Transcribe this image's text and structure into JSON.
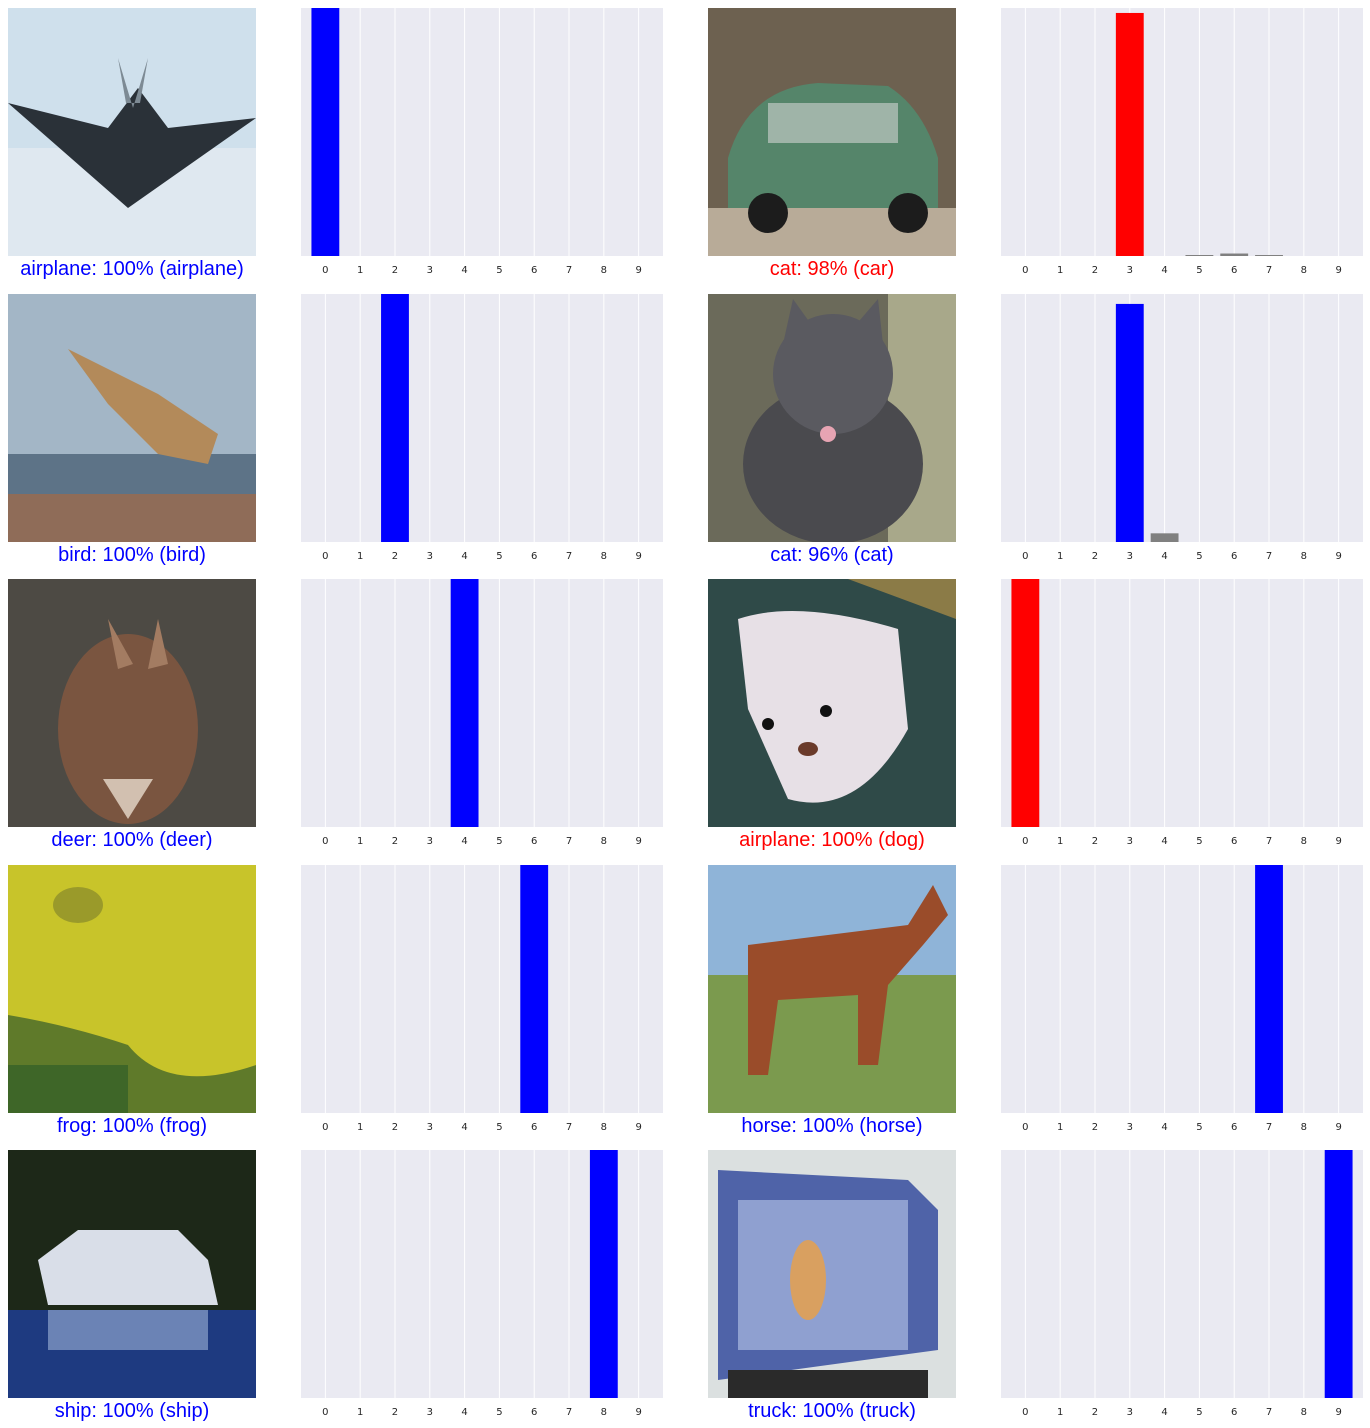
{
  "colors": {
    "correct": "#0000ff",
    "wrong": "#ff0000",
    "other": "#808080",
    "axes_bg": "#eaeaf2",
    "grid": "#ffffff"
  },
  "chart_data": [
    {
      "type": "bar",
      "categories": [
        "0",
        "1",
        "2",
        "3",
        "4",
        "5",
        "6",
        "7",
        "8",
        "9"
      ],
      "values": [
        1.0,
        0,
        0,
        0,
        0,
        0,
        0,
        0,
        0,
        0
      ],
      "predicted": 0,
      "true_label": 0,
      "ylim": [
        0,
        1
      ],
      "grid": true,
      "caption": "airplane: 100% (airplane)",
      "caption_status": "correct",
      "image_icon": "airplane-image"
    },
    {
      "type": "bar",
      "categories": [
        "0",
        "1",
        "2",
        "3",
        "4",
        "5",
        "6",
        "7",
        "8",
        "9"
      ],
      "values": [
        0,
        0,
        0,
        0.98,
        0,
        0.002,
        0.01,
        0.002,
        0,
        0
      ],
      "predicted": 3,
      "true_label": 1,
      "ylim": [
        0,
        1
      ],
      "grid": true,
      "caption": "cat: 98% (car)",
      "caption_status": "wrong",
      "image_icon": "car-image"
    },
    {
      "type": "bar",
      "categories": [
        "0",
        "1",
        "2",
        "3",
        "4",
        "5",
        "6",
        "7",
        "8",
        "9"
      ],
      "values": [
        0,
        0,
        1.0,
        0,
        0,
        0,
        0,
        0,
        0,
        0
      ],
      "predicted": 2,
      "true_label": 2,
      "ylim": [
        0,
        1
      ],
      "grid": true,
      "caption": "bird: 100% (bird)",
      "caption_status": "correct",
      "image_icon": "bird-image"
    },
    {
      "type": "bar",
      "categories": [
        "0",
        "1",
        "2",
        "3",
        "4",
        "5",
        "6",
        "7",
        "8",
        "9"
      ],
      "values": [
        0,
        0,
        0,
        0.96,
        0.035,
        0,
        0,
        0,
        0,
        0
      ],
      "predicted": 3,
      "true_label": 3,
      "ylim": [
        0,
        1
      ],
      "grid": true,
      "caption": "cat: 96% (cat)",
      "caption_status": "correct",
      "image_icon": "cat-image"
    },
    {
      "type": "bar",
      "categories": [
        "0",
        "1",
        "2",
        "3",
        "4",
        "5",
        "6",
        "7",
        "8",
        "9"
      ],
      "values": [
        0,
        0,
        0,
        0,
        1.0,
        0,
        0,
        0,
        0,
        0
      ],
      "predicted": 4,
      "true_label": 4,
      "ylim": [
        0,
        1
      ],
      "grid": true,
      "caption": "deer: 100% (deer)",
      "caption_status": "correct",
      "image_icon": "deer-image"
    },
    {
      "type": "bar",
      "categories": [
        "0",
        "1",
        "2",
        "3",
        "4",
        "5",
        "6",
        "7",
        "8",
        "9"
      ],
      "values": [
        1.0,
        0,
        0,
        0,
        0,
        0,
        0,
        0,
        0,
        0
      ],
      "predicted": 0,
      "true_label": 5,
      "ylim": [
        0,
        1
      ],
      "grid": true,
      "caption": "airplane: 100% (dog)",
      "caption_status": "wrong",
      "image_icon": "dog-image"
    },
    {
      "type": "bar",
      "categories": [
        "0",
        "1",
        "2",
        "3",
        "4",
        "5",
        "6",
        "7",
        "8",
        "9"
      ],
      "values": [
        0,
        0,
        0,
        0,
        0,
        0,
        1.0,
        0,
        0,
        0
      ],
      "predicted": 6,
      "true_label": 6,
      "ylim": [
        0,
        1
      ],
      "grid": true,
      "caption": "frog: 100% (frog)",
      "caption_status": "correct",
      "image_icon": "frog-image"
    },
    {
      "type": "bar",
      "categories": [
        "0",
        "1",
        "2",
        "3",
        "4",
        "5",
        "6",
        "7",
        "8",
        "9"
      ],
      "values": [
        0,
        0,
        0,
        0,
        0,
        0,
        0,
        1.0,
        0,
        0
      ],
      "predicted": 7,
      "true_label": 7,
      "ylim": [
        0,
        1
      ],
      "grid": true,
      "caption": "horse: 100% (horse)",
      "caption_status": "correct",
      "image_icon": "horse-image"
    },
    {
      "type": "bar",
      "categories": [
        "0",
        "1",
        "2",
        "3",
        "4",
        "5",
        "6",
        "7",
        "8",
        "9"
      ],
      "values": [
        0,
        0,
        0,
        0,
        0,
        0,
        0,
        0,
        1.0,
        0
      ],
      "predicted": 8,
      "true_label": 8,
      "ylim": [
        0,
        1
      ],
      "grid": true,
      "caption": "ship: 100% (ship)",
      "caption_status": "correct",
      "image_icon": "ship-image"
    },
    {
      "type": "bar",
      "categories": [
        "0",
        "1",
        "2",
        "3",
        "4",
        "5",
        "6",
        "7",
        "8",
        "9"
      ],
      "values": [
        0,
        0,
        0,
        0,
        0,
        0,
        0,
        0,
        0,
        1.0
      ],
      "predicted": 9,
      "true_label": 9,
      "ylim": [
        0,
        1
      ],
      "grid": true,
      "caption": "truck: 100% (truck)",
      "caption_status": "correct",
      "image_icon": "truck-image"
    }
  ]
}
